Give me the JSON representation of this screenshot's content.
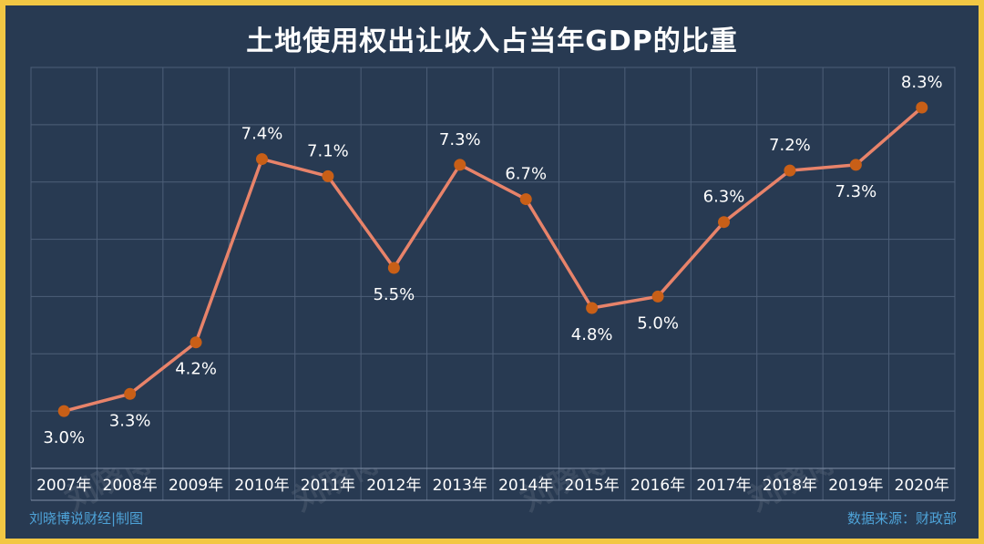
{
  "chart_data": {
    "type": "line",
    "title": "土地使用权出让收入占当年GDP的比重",
    "categories": [
      "2007年",
      "2008年",
      "2009年",
      "2010年",
      "2011年",
      "2012年",
      "2013年",
      "2014年",
      "2015年",
      "2016年",
      "2017年",
      "2018年",
      "2019年",
      "2020年"
    ],
    "values": [
      3.0,
      3.3,
      4.2,
      7.4,
      7.1,
      5.5,
      7.3,
      6.7,
      4.8,
      5.0,
      6.3,
      7.2,
      7.3,
      8.3
    ],
    "data_labels": [
      "3.0%",
      "3.3%",
      "4.2%",
      "7.4%",
      "7.1%",
      "5.5%",
      "7.3%",
      "6.7%",
      "4.8%",
      "5.0%",
      "6.3%",
      "7.2%",
      "7.3%",
      "8.3%"
    ],
    "label_side": [
      "below",
      "below",
      "below",
      "above",
      "above",
      "below",
      "above",
      "above",
      "below",
      "below",
      "above",
      "above",
      "below",
      "above"
    ],
    "ylim": [
      2,
      9
    ],
    "grid": true,
    "legend": "none",
    "xlabel": "",
    "ylabel": ""
  },
  "colors": {
    "background": "#283a52",
    "border": "#f2c744",
    "line": "#e8836a",
    "marker": "#c85f17",
    "grid": "#4d5f78",
    "text": "#ffffff"
  },
  "footer": {
    "credit": "刘晓博说财经|制图",
    "source": "数据来源：财政部"
  },
  "watermark": "刘晓博说财经"
}
